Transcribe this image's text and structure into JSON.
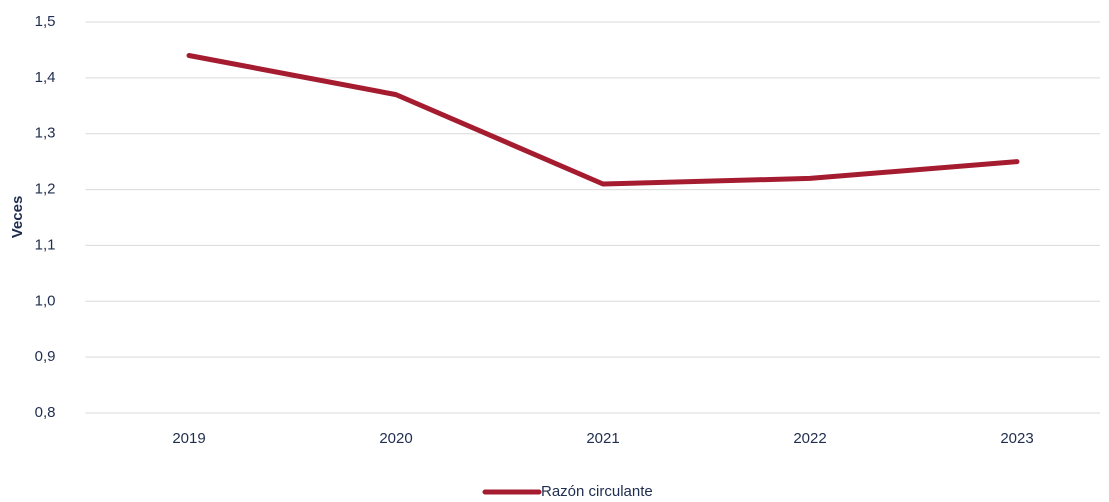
{
  "chart_data": {
    "type": "line",
    "ylabel": "Veces",
    "categories": [
      "2019",
      "2020",
      "2021",
      "2022",
      "2023"
    ],
    "series": [
      {
        "name": "Razón circulante",
        "color": "#a51c30",
        "values": [
          1.44,
          1.37,
          1.21,
          1.22,
          1.25
        ]
      }
    ],
    "ylim": [
      0.8,
      1.5
    ],
    "yticks": [
      {
        "value": 0.8,
        "label": "0,8"
      },
      {
        "value": 0.9,
        "label": "0,9"
      },
      {
        "value": 1.0,
        "label": "1,0"
      },
      {
        "value": 1.1,
        "label": "1,1"
      },
      {
        "value": 1.2,
        "label": "1,2"
      },
      {
        "value": 1.3,
        "label": "1,3"
      },
      {
        "value": 1.4,
        "label": "1,4"
      },
      {
        "value": 1.5,
        "label": "1,5"
      }
    ],
    "grid": true,
    "legend": "bottom"
  }
}
